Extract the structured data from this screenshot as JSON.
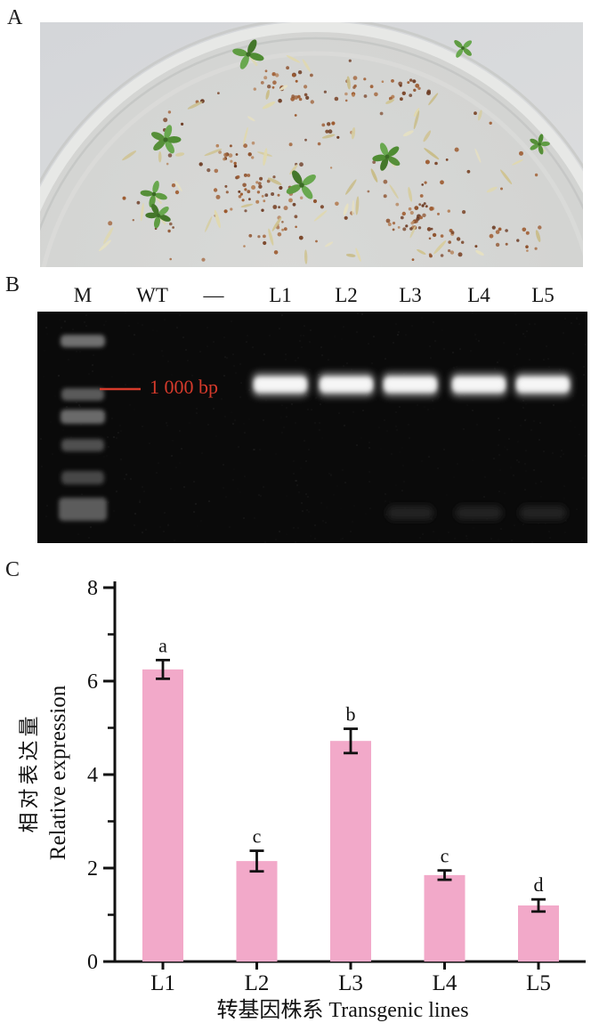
{
  "panels": {
    "a": "A",
    "b": "B",
    "c": "C"
  },
  "photo": {
    "alt": "Petri dish with transgenic seedlings and seeds on selection medium"
  },
  "gel": {
    "lanes": [
      {
        "label": "M",
        "role": "marker",
        "band": false
      },
      {
        "label": "WT",
        "role": "sample",
        "band": false
      },
      {
        "label": "—",
        "role": "sample",
        "band": false
      },
      {
        "label": "L1",
        "role": "sample",
        "band": true
      },
      {
        "label": "L2",
        "role": "sample",
        "band": true
      },
      {
        "label": "L3",
        "role": "sample",
        "band": true
      },
      {
        "label": "L4",
        "role": "sample",
        "band": true
      },
      {
        "label": "L5",
        "role": "sample",
        "band": true
      }
    ],
    "annotation": {
      "text": "1 000 bp",
      "color": "#d63a2b"
    }
  },
  "chart_data": {
    "type": "bar",
    "title": "",
    "categories": [
      "L1",
      "L2",
      "L3",
      "L4",
      "L5"
    ],
    "values": [
      6.25,
      2.15,
      4.72,
      1.85,
      1.2
    ],
    "errors": [
      0.2,
      0.22,
      0.26,
      0.1,
      0.13
    ],
    "sig_letters": [
      "a",
      "c",
      "b",
      "c",
      "d"
    ],
    "xlabel": "转基因株系 Transgenic lines",
    "ylabel_zh": "相对表达量",
    "ylabel_en": "Relative expression",
    "ylim": [
      0,
      8
    ],
    "ytick_major": [
      0,
      2,
      4,
      6,
      8
    ],
    "ytick_minor": [
      1,
      3,
      5,
      7
    ],
    "grid": false,
    "legend": null,
    "bar_color": "#f2a9c9",
    "axis_color": "#111111"
  }
}
